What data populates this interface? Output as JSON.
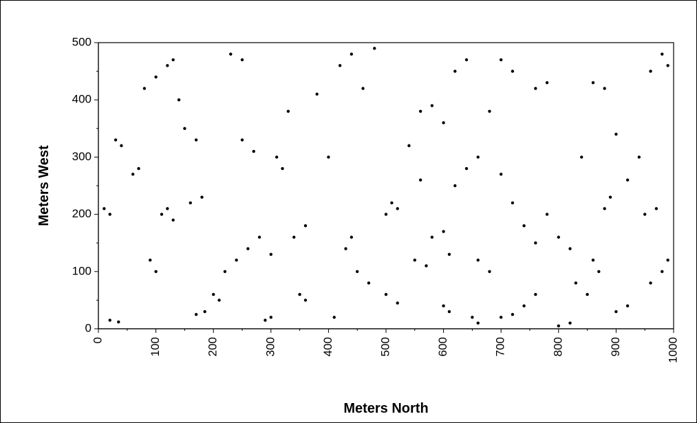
{
  "chart_data": {
    "type": "scatter",
    "title": "",
    "xlabel": "Meters North",
    "ylabel": "Meters West",
    "xlim": [
      0,
      1000
    ],
    "ylim": [
      0,
      500
    ],
    "x_ticks": [
      0,
      100,
      200,
      300,
      400,
      500,
      600,
      700,
      800,
      900,
      1000
    ],
    "y_ticks": [
      0,
      100,
      200,
      300,
      400,
      500
    ],
    "x_tick_labels": [
      "0",
      "100",
      "200",
      "300",
      "400",
      "500",
      "600",
      "700",
      "800",
      "900",
      "1000"
    ],
    "y_tick_labels": [
      "0",
      "100",
      "200",
      "300",
      "400",
      "500"
    ],
    "grid": false,
    "legend": "none",
    "marker_color": "#000000",
    "series": [
      {
        "points": [
          [
            20,
            15
          ],
          [
            35,
            12
          ],
          [
            170,
            25
          ],
          [
            185,
            30
          ],
          [
            290,
            15
          ],
          [
            300,
            20
          ],
          [
            410,
            20
          ],
          [
            500,
            60
          ],
          [
            520,
            45
          ],
          [
            600,
            40
          ],
          [
            610,
            30
          ],
          [
            700,
            20
          ],
          [
            720,
            25
          ],
          [
            740,
            40
          ],
          [
            760,
            60
          ],
          [
            800,
            5
          ],
          [
            820,
            10
          ],
          [
            900,
            30
          ],
          [
            920,
            40
          ],
          [
            960,
            80
          ],
          [
            980,
            100
          ],
          [
            990,
            120
          ],
          [
            10,
            210
          ],
          [
            20,
            200
          ],
          [
            60,
            270
          ],
          [
            70,
            280
          ],
          [
            80,
            420
          ],
          [
            100,
            440
          ],
          [
            110,
            200
          ],
          [
            120,
            210
          ],
          [
            130,
            190
          ],
          [
            140,
            400
          ],
          [
            160,
            220
          ],
          [
            180,
            230
          ],
          [
            220,
            100
          ],
          [
            240,
            120
          ],
          [
            260,
            140
          ],
          [
            280,
            160
          ],
          [
            300,
            130
          ],
          [
            310,
            300
          ],
          [
            320,
            280
          ],
          [
            330,
            380
          ],
          [
            340,
            160
          ],
          [
            360,
            180
          ],
          [
            380,
            410
          ],
          [
            400,
            300
          ],
          [
            420,
            460
          ],
          [
            440,
            480
          ],
          [
            460,
            420
          ],
          [
            480,
            490
          ],
          [
            500,
            200
          ],
          [
            510,
            220
          ],
          [
            520,
            210
          ],
          [
            540,
            320
          ],
          [
            560,
            260
          ],
          [
            580,
            160
          ],
          [
            600,
            170
          ],
          [
            610,
            130
          ],
          [
            620,
            250
          ],
          [
            640,
            280
          ],
          [
            660,
            300
          ],
          [
            680,
            380
          ],
          [
            700,
            270
          ],
          [
            720,
            220
          ],
          [
            740,
            180
          ],
          [
            760,
            150
          ],
          [
            780,
            200
          ],
          [
            800,
            160
          ],
          [
            820,
            140
          ],
          [
            840,
            300
          ],
          [
            860,
            430
          ],
          [
            880,
            420
          ],
          [
            900,
            340
          ],
          [
            920,
            260
          ],
          [
            940,
            300
          ],
          [
            960,
            450
          ],
          [
            980,
            480
          ],
          [
            990,
            460
          ],
          [
            150,
            350
          ],
          [
            170,
            330
          ],
          [
            250,
            330
          ],
          [
            270,
            310
          ],
          [
            450,
            100
          ],
          [
            470,
            80
          ],
          [
            550,
            120
          ],
          [
            570,
            110
          ],
          [
            650,
            20
          ],
          [
            660,
            10
          ],
          [
            880,
            210
          ],
          [
            890,
            230
          ],
          [
            950,
            200
          ],
          [
            970,
            210
          ],
          [
            90,
            120
          ],
          [
            100,
            100
          ],
          [
            200,
            60
          ],
          [
            210,
            50
          ],
          [
            350,
            60
          ],
          [
            360,
            50
          ],
          [
            430,
            140
          ],
          [
            440,
            160
          ],
          [
            620,
            450
          ],
          [
            640,
            470
          ],
          [
            700,
            470
          ],
          [
            720,
            450
          ],
          [
            760,
            420
          ],
          [
            780,
            430
          ],
          [
            30,
            330
          ],
          [
            40,
            320
          ],
          [
            120,
            460
          ],
          [
            130,
            470
          ],
          [
            230,
            480
          ],
          [
            250,
            470
          ],
          [
            560,
            380
          ],
          [
            580,
            390
          ],
          [
            600,
            360
          ],
          [
            660,
            120
          ],
          [
            680,
            100
          ],
          [
            830,
            80
          ],
          [
            850,
            60
          ],
          [
            860,
            120
          ],
          [
            870,
            100
          ]
        ]
      }
    ]
  }
}
